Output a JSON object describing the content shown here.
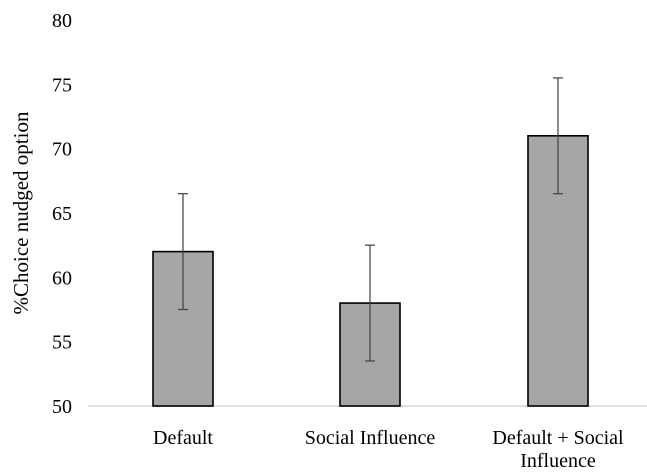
{
  "chart_data": {
    "type": "bar",
    "title": "",
    "xlabel": "",
    "ylabel": "%Choice nudged option",
    "categories": [
      [
        "Default"
      ],
      [
        "Social Influence"
      ],
      [
        "Default + Social",
        "Influence"
      ]
    ],
    "values": [
      62,
      58,
      71
    ],
    "error_bars": [
      {
        "low": 57.5,
        "high": 66.5
      },
      {
        "low": 53.5,
        "high": 62.5
      },
      {
        "low": 66.5,
        "high": 75.5
      }
    ],
    "ylim": [
      50,
      80
    ],
    "yticks": [
      50,
      55,
      60,
      65,
      70,
      75,
      80
    ],
    "grid": false,
    "colors": {
      "bar_fill": "#a6a6a6",
      "bar_stroke": "#000000",
      "axis": "#d9d9d9",
      "error_bar": "#404040"
    }
  }
}
